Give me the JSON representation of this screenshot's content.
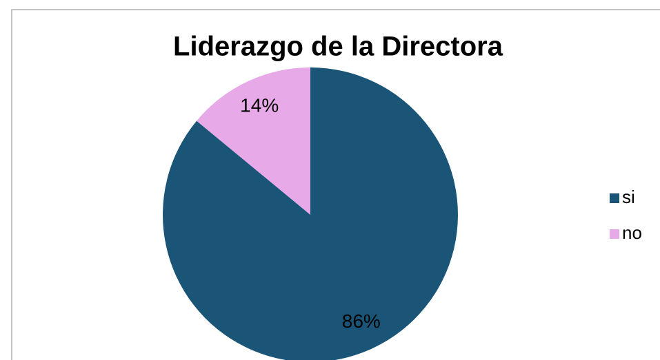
{
  "chart_data": {
    "type": "pie",
    "title": "Liderazgo de la Directora",
    "categories": [
      "si",
      "no"
    ],
    "values": [
      86,
      14
    ],
    "value_labels": [
      "86%",
      "14%"
    ],
    "colors": [
      "#1a5578",
      "#e8a9e8"
    ],
    "legend": "right"
  }
}
